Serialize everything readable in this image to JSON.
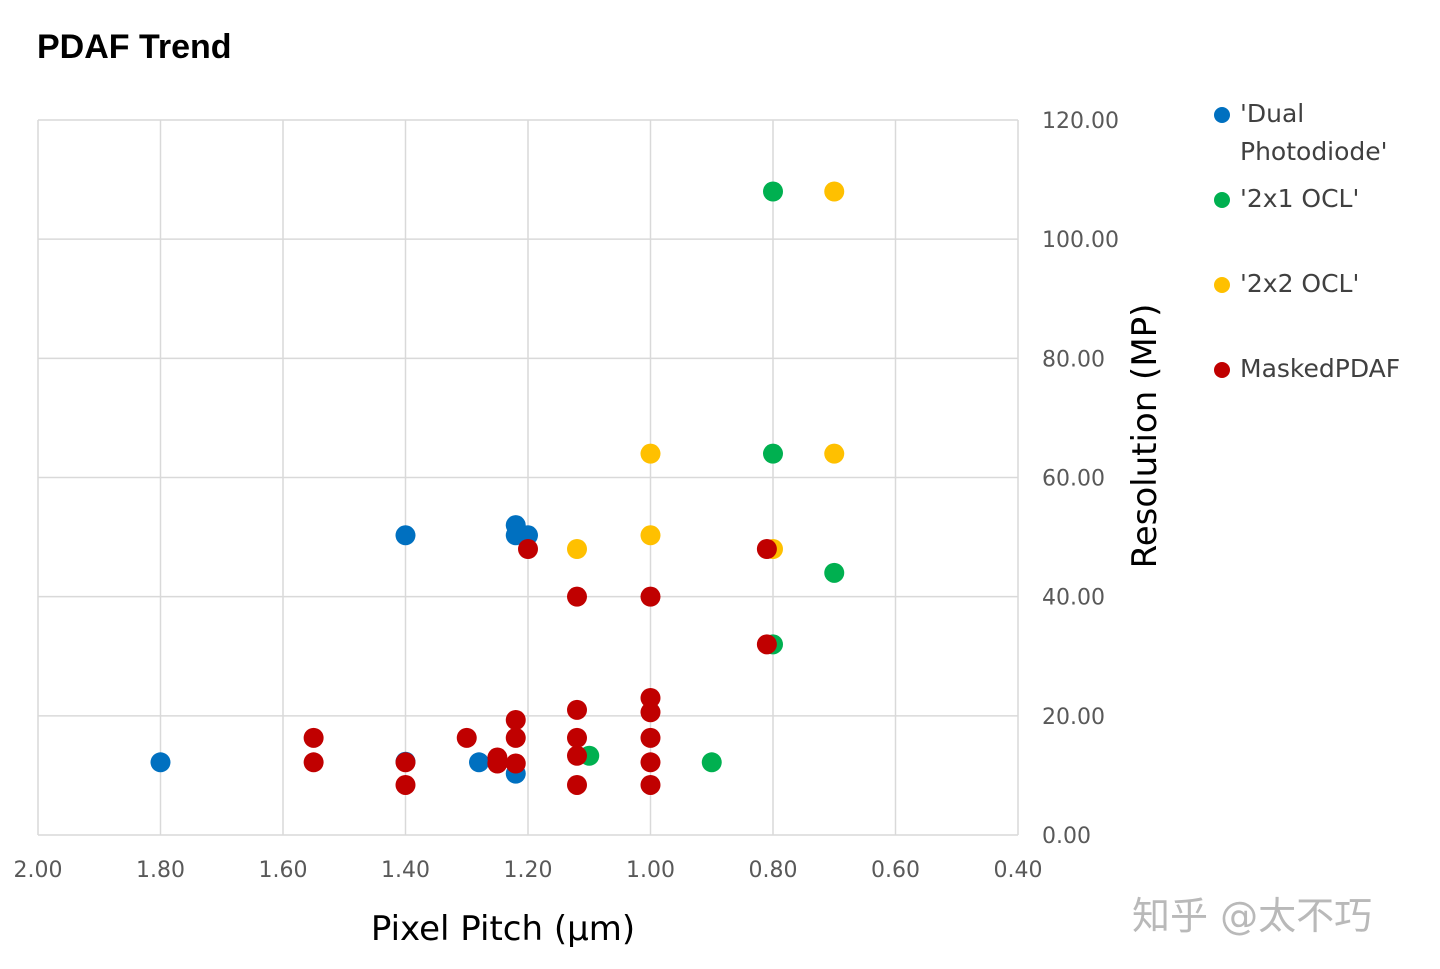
{
  "chart_data": {
    "type": "scatter",
    "title": "PDAF Trend",
    "xlabel": "Pixel Pitch (μm)",
    "ylabel": "Resolution (MP)",
    "xlim": [
      2.0,
      0.4
    ],
    "x_reversed": true,
    "ylim": [
      0,
      120
    ],
    "x_ticks": [
      "2.00",
      "1.80",
      "1.60",
      "1.40",
      "1.20",
      "1.00",
      "0.80",
      "0.60",
      "0.40"
    ],
    "y_ticks": [
      "0.00",
      "20.00",
      "40.00",
      "60.00",
      "80.00",
      "100.00",
      "120.00"
    ],
    "y_axis_position": "right",
    "grid": true,
    "legend_position": "right",
    "series": [
      {
        "name": "'Dual Photodiode'",
        "color": "#0070C0",
        "points": [
          [
            1.8,
            12.2
          ],
          [
            1.4,
            50.3
          ],
          [
            1.4,
            12.3
          ],
          [
            1.28,
            12.2
          ],
          [
            1.22,
            52.0
          ],
          [
            1.22,
            50.3
          ],
          [
            1.2,
            50.3
          ],
          [
            1.22,
            10.3
          ]
        ]
      },
      {
        "name": "'2x1 OCL'",
        "color": "#00B050",
        "points": [
          [
            0.8,
            108.0
          ],
          [
            0.8,
            64.0
          ],
          [
            0.7,
            44.0
          ],
          [
            0.8,
            32.0
          ],
          [
            1.1,
            13.3
          ],
          [
            0.9,
            12.2
          ]
        ]
      },
      {
        "name": "'2x2 OCL'",
        "color": "#FFC000",
        "points": [
          [
            0.7,
            108.0
          ],
          [
            0.7,
            64.0
          ],
          [
            1.0,
            64.0
          ],
          [
            1.0,
            50.3
          ],
          [
            1.12,
            48.0
          ],
          [
            0.8,
            48.0
          ]
        ]
      },
      {
        "name": "MaskedPDAF",
        "color": "#C00000",
        "points": [
          [
            1.55,
            16.3
          ],
          [
            1.55,
            12.2
          ],
          [
            1.4,
            12.2
          ],
          [
            1.4,
            8.4
          ],
          [
            1.3,
            16.3
          ],
          [
            1.25,
            13.0
          ],
          [
            1.25,
            12.0
          ],
          [
            1.22,
            19.3
          ],
          [
            1.22,
            16.3
          ],
          [
            1.22,
            12.0
          ],
          [
            1.2,
            48.0
          ],
          [
            1.12,
            40.0
          ],
          [
            1.12,
            21.0
          ],
          [
            1.12,
            16.3
          ],
          [
            1.12,
            13.3
          ],
          [
            1.12,
            8.4
          ],
          [
            1.0,
            40.0
          ],
          [
            1.0,
            23.0
          ],
          [
            1.0,
            20.6
          ],
          [
            1.0,
            16.3
          ],
          [
            1.0,
            12.2
          ],
          [
            1.0,
            8.4
          ],
          [
            0.81,
            48.0
          ],
          [
            0.81,
            32.0
          ]
        ]
      }
    ]
  },
  "watermark": "知乎 @太不巧"
}
